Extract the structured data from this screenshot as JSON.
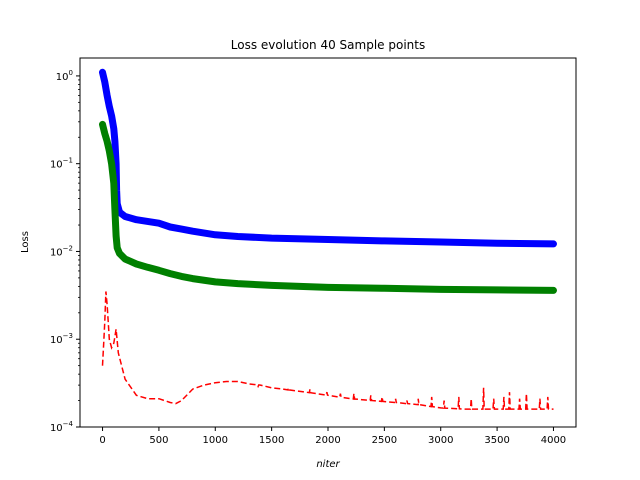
{
  "chart_data": {
    "type": "line",
    "title": "Loss evolution 40 Sample points",
    "xlabel": "niter",
    "ylabel": "Loss",
    "xlim": [
      -200,
      4200
    ],
    "ylim": [
      0.0001,
      1.6
    ],
    "yscale": "log",
    "grid": false,
    "x_ticks": [
      0,
      500,
      1000,
      1500,
      2000,
      2500,
      3000,
      3500,
      4000
    ],
    "x_tick_labels": [
      "0",
      "500",
      "1000",
      "1500",
      "2000",
      "2500",
      "3000",
      "3500",
      "4000"
    ],
    "y_ticks": [
      0.0001,
      0.001,
      0.01,
      0.1,
      1
    ],
    "y_tick_base": "10",
    "y_tick_exponents": [
      "−4",
      "−3",
      "−2",
      "−1",
      "0"
    ],
    "series": [
      {
        "color": "#0000ff",
        "style": "thick-markers",
        "points": [
          [
            0,
            1.1
          ],
          [
            20,
            0.85
          ],
          [
            40,
            0.6
          ],
          [
            60,
            0.45
          ],
          [
            80,
            0.35
          ],
          [
            100,
            0.25
          ],
          [
            110,
            0.18
          ],
          [
            120,
            0.1
          ],
          [
            125,
            0.05
          ],
          [
            130,
            0.035
          ],
          [
            150,
            0.028
          ],
          [
            200,
            0.025
          ],
          [
            300,
            0.023
          ],
          [
            400,
            0.022
          ],
          [
            500,
            0.021
          ],
          [
            600,
            0.019
          ],
          [
            700,
            0.018
          ],
          [
            800,
            0.017
          ],
          [
            1000,
            0.0155
          ],
          [
            1200,
            0.0148
          ],
          [
            1500,
            0.0142
          ],
          [
            2000,
            0.0137
          ],
          [
            2500,
            0.0132
          ],
          [
            3000,
            0.0128
          ],
          [
            3500,
            0.0124
          ],
          [
            4000,
            0.0122
          ]
        ]
      },
      {
        "color": "#008000",
        "style": "thick-markers",
        "points": [
          [
            0,
            0.28
          ],
          [
            20,
            0.22
          ],
          [
            40,
            0.18
          ],
          [
            60,
            0.14
          ],
          [
            80,
            0.1
          ],
          [
            100,
            0.06
          ],
          [
            110,
            0.03
          ],
          [
            120,
            0.015
          ],
          [
            130,
            0.011
          ],
          [
            150,
            0.0095
          ],
          [
            200,
            0.0082
          ],
          [
            300,
            0.0072
          ],
          [
            400,
            0.0066
          ],
          [
            500,
            0.0061
          ],
          [
            600,
            0.0056
          ],
          [
            700,
            0.0052
          ],
          [
            800,
            0.0049
          ],
          [
            1000,
            0.0045
          ],
          [
            1200,
            0.0043
          ],
          [
            1500,
            0.0041
          ],
          [
            2000,
            0.0039
          ],
          [
            2500,
            0.0038
          ],
          [
            3000,
            0.0037
          ],
          [
            3500,
            0.00365
          ],
          [
            4000,
            0.0036
          ]
        ]
      },
      {
        "color": "#ff0000",
        "style": "dashed",
        "points": [
          [
            0,
            0.0005
          ],
          [
            10,
            0.0009
          ],
          [
            20,
            0.0016
          ],
          [
            30,
            0.0035
          ],
          [
            40,
            0.0025
          ],
          [
            50,
            0.0016
          ],
          [
            60,
            0.001
          ],
          [
            80,
            0.0008
          ],
          [
            100,
            0.0009
          ],
          [
            120,
            0.0013
          ],
          [
            140,
            0.0007
          ],
          [
            200,
            0.00035
          ],
          [
            300,
            0.00023
          ],
          [
            400,
            0.00021
          ],
          [
            500,
            0.00021
          ],
          [
            600,
            0.00019
          ],
          [
            650,
            0.000185
          ],
          [
            700,
            0.0002
          ],
          [
            800,
            0.00027
          ],
          [
            900,
            0.0003
          ],
          [
            1000,
            0.00032
          ],
          [
            1100,
            0.00033
          ],
          [
            1200,
            0.00033
          ],
          [
            1300,
            0.00031
          ],
          [
            1400,
            0.0003
          ],
          [
            1500,
            0.00028
          ],
          [
            1600,
            0.00027
          ],
          [
            1700,
            0.00026
          ],
          [
            1800,
            0.00025
          ],
          [
            2000,
            0.00023
          ],
          [
            2200,
            0.00021
          ],
          [
            2400,
            0.0002
          ],
          [
            2600,
            0.00019
          ],
          [
            2800,
            0.00018
          ],
          [
            3000,
            0.000165
          ],
          [
            3200,
            0.00016
          ],
          [
            3400,
            0.00016
          ],
          [
            3600,
            0.00016
          ],
          [
            3800,
            0.00016
          ],
          [
            4000,
            0.00016
          ]
        ],
        "spikes": [
          [
            1380,
            0.00029
          ],
          [
            1650,
            0.00028
          ],
          [
            1840,
            0.00027
          ],
          [
            1990,
            0.00025
          ],
          [
            2110,
            0.00024
          ],
          [
            2230,
            0.00024
          ],
          [
            2380,
            0.00023
          ],
          [
            2480,
            0.00022
          ],
          [
            2600,
            0.00021
          ],
          [
            2700,
            0.0002
          ],
          [
            2800,
            0.00021
          ],
          [
            2920,
            0.00022
          ],
          [
            3030,
            0.0002
          ],
          [
            3160,
            0.00022
          ],
          [
            3270,
            0.00021
          ],
          [
            3380,
            0.00028
          ],
          [
            3470,
            0.00021
          ],
          [
            3560,
            0.00022
          ],
          [
            3610,
            0.00025
          ],
          [
            3700,
            0.00021
          ],
          [
            3760,
            0.00024
          ],
          [
            3880,
            0.00021
          ],
          [
            3950,
            0.00022
          ]
        ]
      }
    ]
  }
}
